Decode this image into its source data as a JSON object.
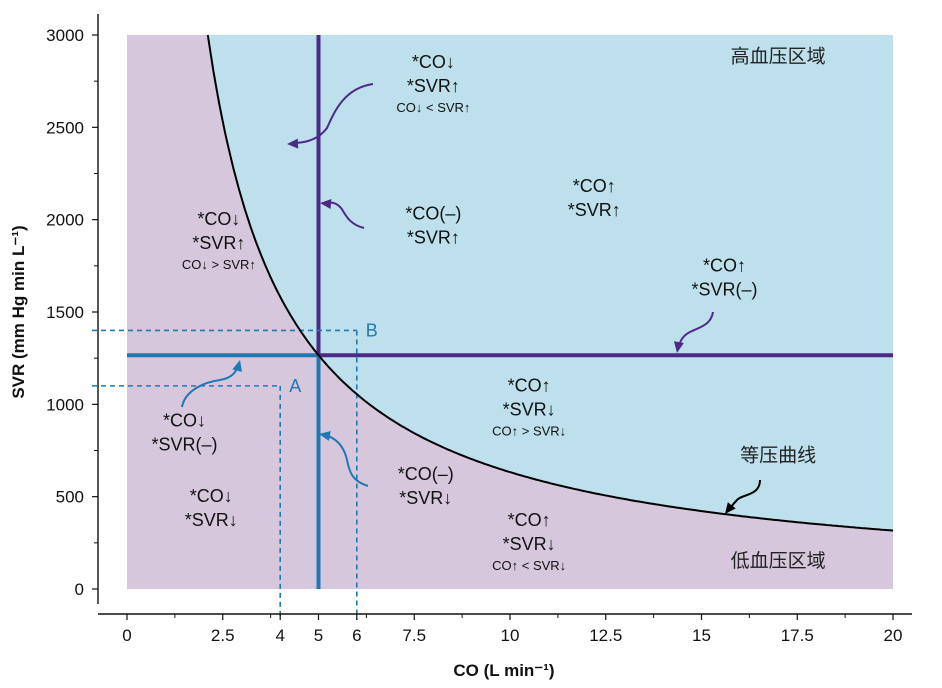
{
  "chart_data": {
    "type": "line",
    "x": [
      2.2,
      2.5,
      3,
      4,
      5,
      6,
      7.5,
      10,
      12.5,
      15,
      17.5,
      20
    ],
    "y": [
      2877,
      2532,
      2110,
      1583,
      1266,
      1055,
      844,
      633,
      506,
      422,
      362,
      317
    ],
    "curve_constant": 6330,
    "series": [
      {
        "name": "等压曲线",
        "type": "hyperbola",
        "equation": "SVR = 6330 / CO"
      }
    ],
    "xlabel": "CO (L min⁻¹)",
    "ylabel": "SVR (mm Hg min L⁻¹)",
    "xlim": [
      0,
      20
    ],
    "ylim": [
      0,
      3000
    ],
    "xticks": [
      0,
      2.5,
      4,
      5,
      6,
      7.5,
      10,
      12.5,
      15,
      17.5,
      20
    ],
    "xtick_labels": [
      "0",
      "2.5",
      "4",
      "5",
      "6",
      "7.5",
      "10",
      "12.5",
      "15",
      "17.5",
      "20"
    ],
    "xminor": [
      1.25,
      3.75,
      6.25,
      8.75,
      11.25,
      13.75,
      16.25,
      18.75
    ],
    "yticks": [
      0,
      500,
      1000,
      1500,
      2000,
      2500,
      3000
    ],
    "ytick_labels": [
      "0",
      "500",
      "1000",
      "1500",
      "2000",
      "2500",
      "3000"
    ],
    "yminor": [
      250,
      750,
      1250,
      1750,
      2250,
      2750
    ],
    "operating_point": {
      "co": 5,
      "svr": 1266
    },
    "point_A": {
      "label": "A",
      "co": 4,
      "svr": 1100
    },
    "point_B": {
      "label": "B",
      "co": 6,
      "svr": 1400
    },
    "regions": [
      {
        "label": "高血压区域",
        "color": "#bde0ec"
      },
      {
        "label": "低血压区域",
        "color": "#d7c7dc"
      }
    ],
    "colors": {
      "blue": "#1f78b4",
      "purple": "#4c2a85",
      "curve": "#000000"
    },
    "annotations": [
      {
        "id": "top-center",
        "co": 8.0,
        "svr": 2820,
        "lines": [
          "*CO↓",
          "*SVR↑"
        ],
        "small": "CO↓ < SVR↑"
      },
      {
        "id": "upper-middle",
        "co": 8.0,
        "svr": 2000,
        "lines": [
          "*CO(–)",
          "*SVR↑"
        ],
        "small": ""
      },
      {
        "id": "left-upper",
        "co": 2.4,
        "svr": 1970,
        "lines": [
          "*CO↓",
          "*SVR↑"
        ],
        "small": "CO↓ > SVR↑"
      },
      {
        "id": "upper-right",
        "co": 12.2,
        "svr": 2150,
        "lines": [
          "*CO↑",
          "*SVR↑"
        ],
        "small": ""
      },
      {
        "id": "right-middle",
        "co": 15.6,
        "svr": 1720,
        "lines": [
          "*CO↑",
          "*SVR(–)"
        ],
        "small": ""
      },
      {
        "id": "center-right",
        "co": 10.5,
        "svr": 1070,
        "lines": [
          "*CO↑",
          "*SVR↓"
        ],
        "small": "CO↑ > SVR↓"
      },
      {
        "id": "left-lower",
        "co": 1.5,
        "svr": 880,
        "lines": [
          "*CO↓",
          "*SVR(–)"
        ],
        "small": ""
      },
      {
        "id": "lower-middle",
        "co": 7.8,
        "svr": 590,
        "lines": [
          "*CO(–)",
          "*SVR↓"
        ],
        "small": ""
      },
      {
        "id": "bottom-left",
        "co": 2.2,
        "svr": 470,
        "lines": [
          "*CO↓",
          "*SVR↓"
        ],
        "small": ""
      },
      {
        "id": "bottom-center",
        "co": 10.5,
        "svr": 340,
        "lines": [
          "*CO↑",
          "*SVR↓"
        ],
        "small": "CO↑ < SVR↓"
      }
    ],
    "curve_label": "等压曲线"
  }
}
